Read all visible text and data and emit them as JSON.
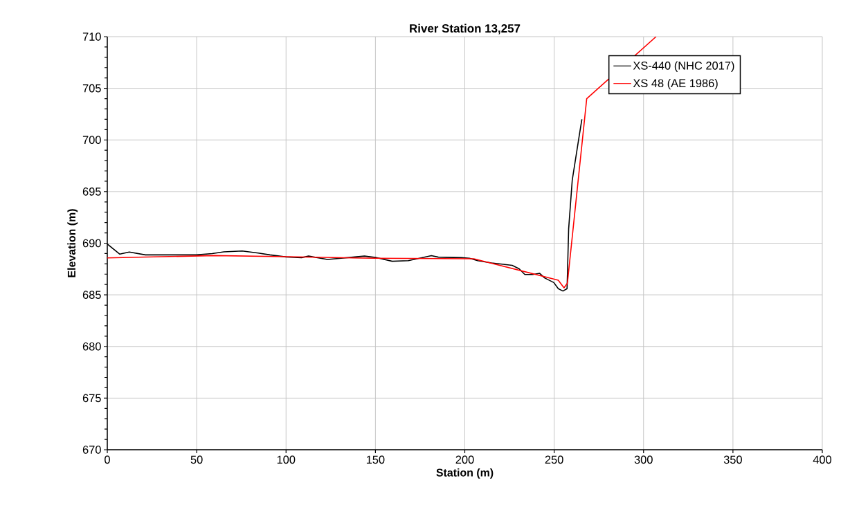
{
  "chart_data": {
    "type": "line",
    "title": "River Station 13,257",
    "xlabel": "Station (m)",
    "ylabel": "Elevation (m)",
    "xlim": [
      0,
      400
    ],
    "xticks": [
      0,
      50,
      100,
      150,
      200,
      250,
      300,
      350,
      400
    ],
    "ylim": [
      670,
      710
    ],
    "yticks": [
      670,
      675,
      680,
      685,
      690,
      695,
      700,
      705,
      710
    ],
    "grid": true,
    "legend": "top right",
    "series": [
      {
        "name": "XS-440 (NHC 2017)",
        "color": "#000000",
        "x": [
          0,
          7,
          12.3,
          21.3,
          50,
          58.7,
          65.2,
          75.5,
          84.5,
          91,
          100,
          108.7,
          112.6,
          123.2,
          137.5,
          143.9,
          150,
          159.4,
          168.4,
          181.3,
          185.2,
          198.1,
          202.6,
          207.2,
          214.9,
          226.5,
          230.4,
          233.6,
          238,
          241.9,
          244.6,
          249.8,
          252.3,
          254.9,
          257.2,
          258.1,
          260.1,
          264,
          265.5
        ],
        "values": [
          689.92,
          688.94,
          689.14,
          688.87,
          688.87,
          689.0,
          689.16,
          689.25,
          689.05,
          688.87,
          688.67,
          688.6,
          688.75,
          688.43,
          688.65,
          688.75,
          688.62,
          688.25,
          688.31,
          688.8,
          688.65,
          688.6,
          688.54,
          688.31,
          688.09,
          687.86,
          687.52,
          686.97,
          686.97,
          687.08,
          686.64,
          686.19,
          685.59,
          685.37,
          685.59,
          691.4,
          696.1,
          700.4,
          702
        ]
      },
      {
        "name": "XS 48 (AE 1986)",
        "color": "#ff0000",
        "x": [
          0,
          60,
          100,
          150,
          205,
          252.3,
          255.5,
          257.4,
          268.2,
          307
        ],
        "values": [
          688.58,
          688.8,
          688.69,
          688.54,
          688.49,
          686.42,
          685.68,
          686.13,
          704,
          710
        ]
      }
    ]
  }
}
